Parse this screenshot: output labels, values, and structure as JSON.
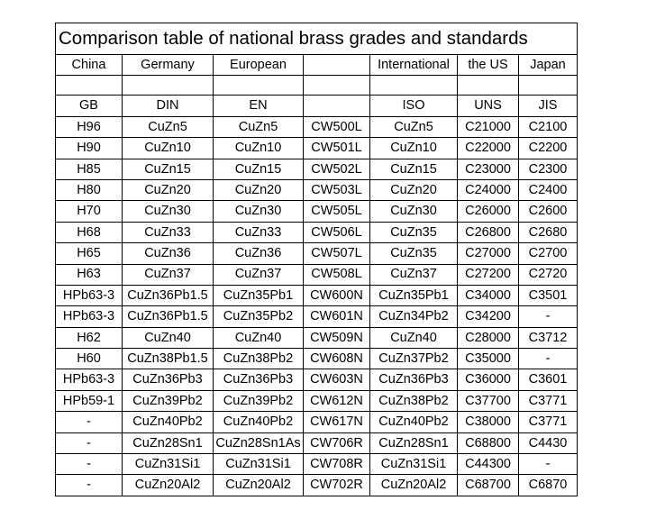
{
  "table": {
    "title": "Comparison table of national brass grades and standards",
    "countries": [
      "China",
      "Germany",
      "European",
      null,
      "International",
      "the US",
      "Japan"
    ],
    "standards": [
      "GB",
      "DIN",
      "EN",
      null,
      "ISO",
      "UNS",
      "JIS"
    ],
    "rows": [
      [
        "H96",
        "CuZn5",
        "CuZn5",
        "CW500L",
        "CuZn5",
        "C21000",
        "C2100"
      ],
      [
        "H90",
        "CuZn10",
        "CuZn10",
        "CW501L",
        "CuZn10",
        "C22000",
        "C2200"
      ],
      [
        "H85",
        "CuZn15",
        "CuZn15",
        "CW502L",
        "CuZn15",
        "C23000",
        "C2300"
      ],
      [
        "H80",
        "CuZn20",
        "CuZn20",
        "CW503L",
        "CuZn20",
        "C24000",
        "C2400"
      ],
      [
        "H70",
        "CuZn30",
        "CuZn30",
        "CW505L",
        "CuZn30",
        "C26000",
        "C2600"
      ],
      [
        "H68",
        "CuZn33",
        "CuZn33",
        "CW506L",
        "CuZn35",
        "C26800",
        "C2680"
      ],
      [
        "H65",
        "CuZn36",
        "CuZn36",
        "CW507L",
        "CuZn35",
        "C27000",
        "C2700"
      ],
      [
        "H63",
        "CuZn37",
        "CuZn37",
        "CW508L",
        "CuZn37",
        "C27200",
        "C2720"
      ],
      [
        "HPb63-3",
        "CuZn36Pb1.5",
        "CuZn35Pb1",
        "CW600N",
        "CuZn35Pb1",
        "C34000",
        "C3501"
      ],
      [
        "HPb63-3",
        "CuZn36Pb1.5",
        "CuZn35Pb2",
        "CW601N",
        "CuZn34Pb2",
        "C34200",
        "-"
      ],
      [
        "H62",
        "CuZn40",
        "CuZn40",
        "CW509N",
        "CuZn40",
        "C28000",
        "C3712"
      ],
      [
        "H60",
        "CuZn38Pb1.5",
        "CuZn38Pb2",
        "CW608N",
        "CuZn37Pb2",
        "C35000",
        "-"
      ],
      [
        "HPb63-3",
        "CuZn36Pb3",
        "CuZn36Pb3",
        "CW603N",
        "CuZn36Pb3",
        "C36000",
        "C3601"
      ],
      [
        "HPb59-1",
        "CuZn39Pb2",
        "CuZn39Pb2",
        "CW612N",
        "CuZn38Pb2",
        "C37700",
        "C3771"
      ],
      [
        "-",
        "CuZn40Pb2",
        "CuZn40Pb2",
        "CW617N",
        "CuZn40Pb2",
        "C38000",
        "C3771"
      ],
      [
        "-",
        "CuZn28Sn1",
        "CuZn28Sn1As",
        "CW706R",
        "CuZn28Sn1",
        "C68800",
        "C4430"
      ],
      [
        "-",
        "CuZn31Si1",
        "CuZn31Si1",
        "CW708R",
        "CuZn31Si1",
        "C44300",
        "-"
      ],
      [
        "-",
        "CuZn20Al2",
        "CuZn20Al2",
        "CW702R",
        "CuZn20Al2",
        "C68700",
        "C6870"
      ]
    ]
  }
}
